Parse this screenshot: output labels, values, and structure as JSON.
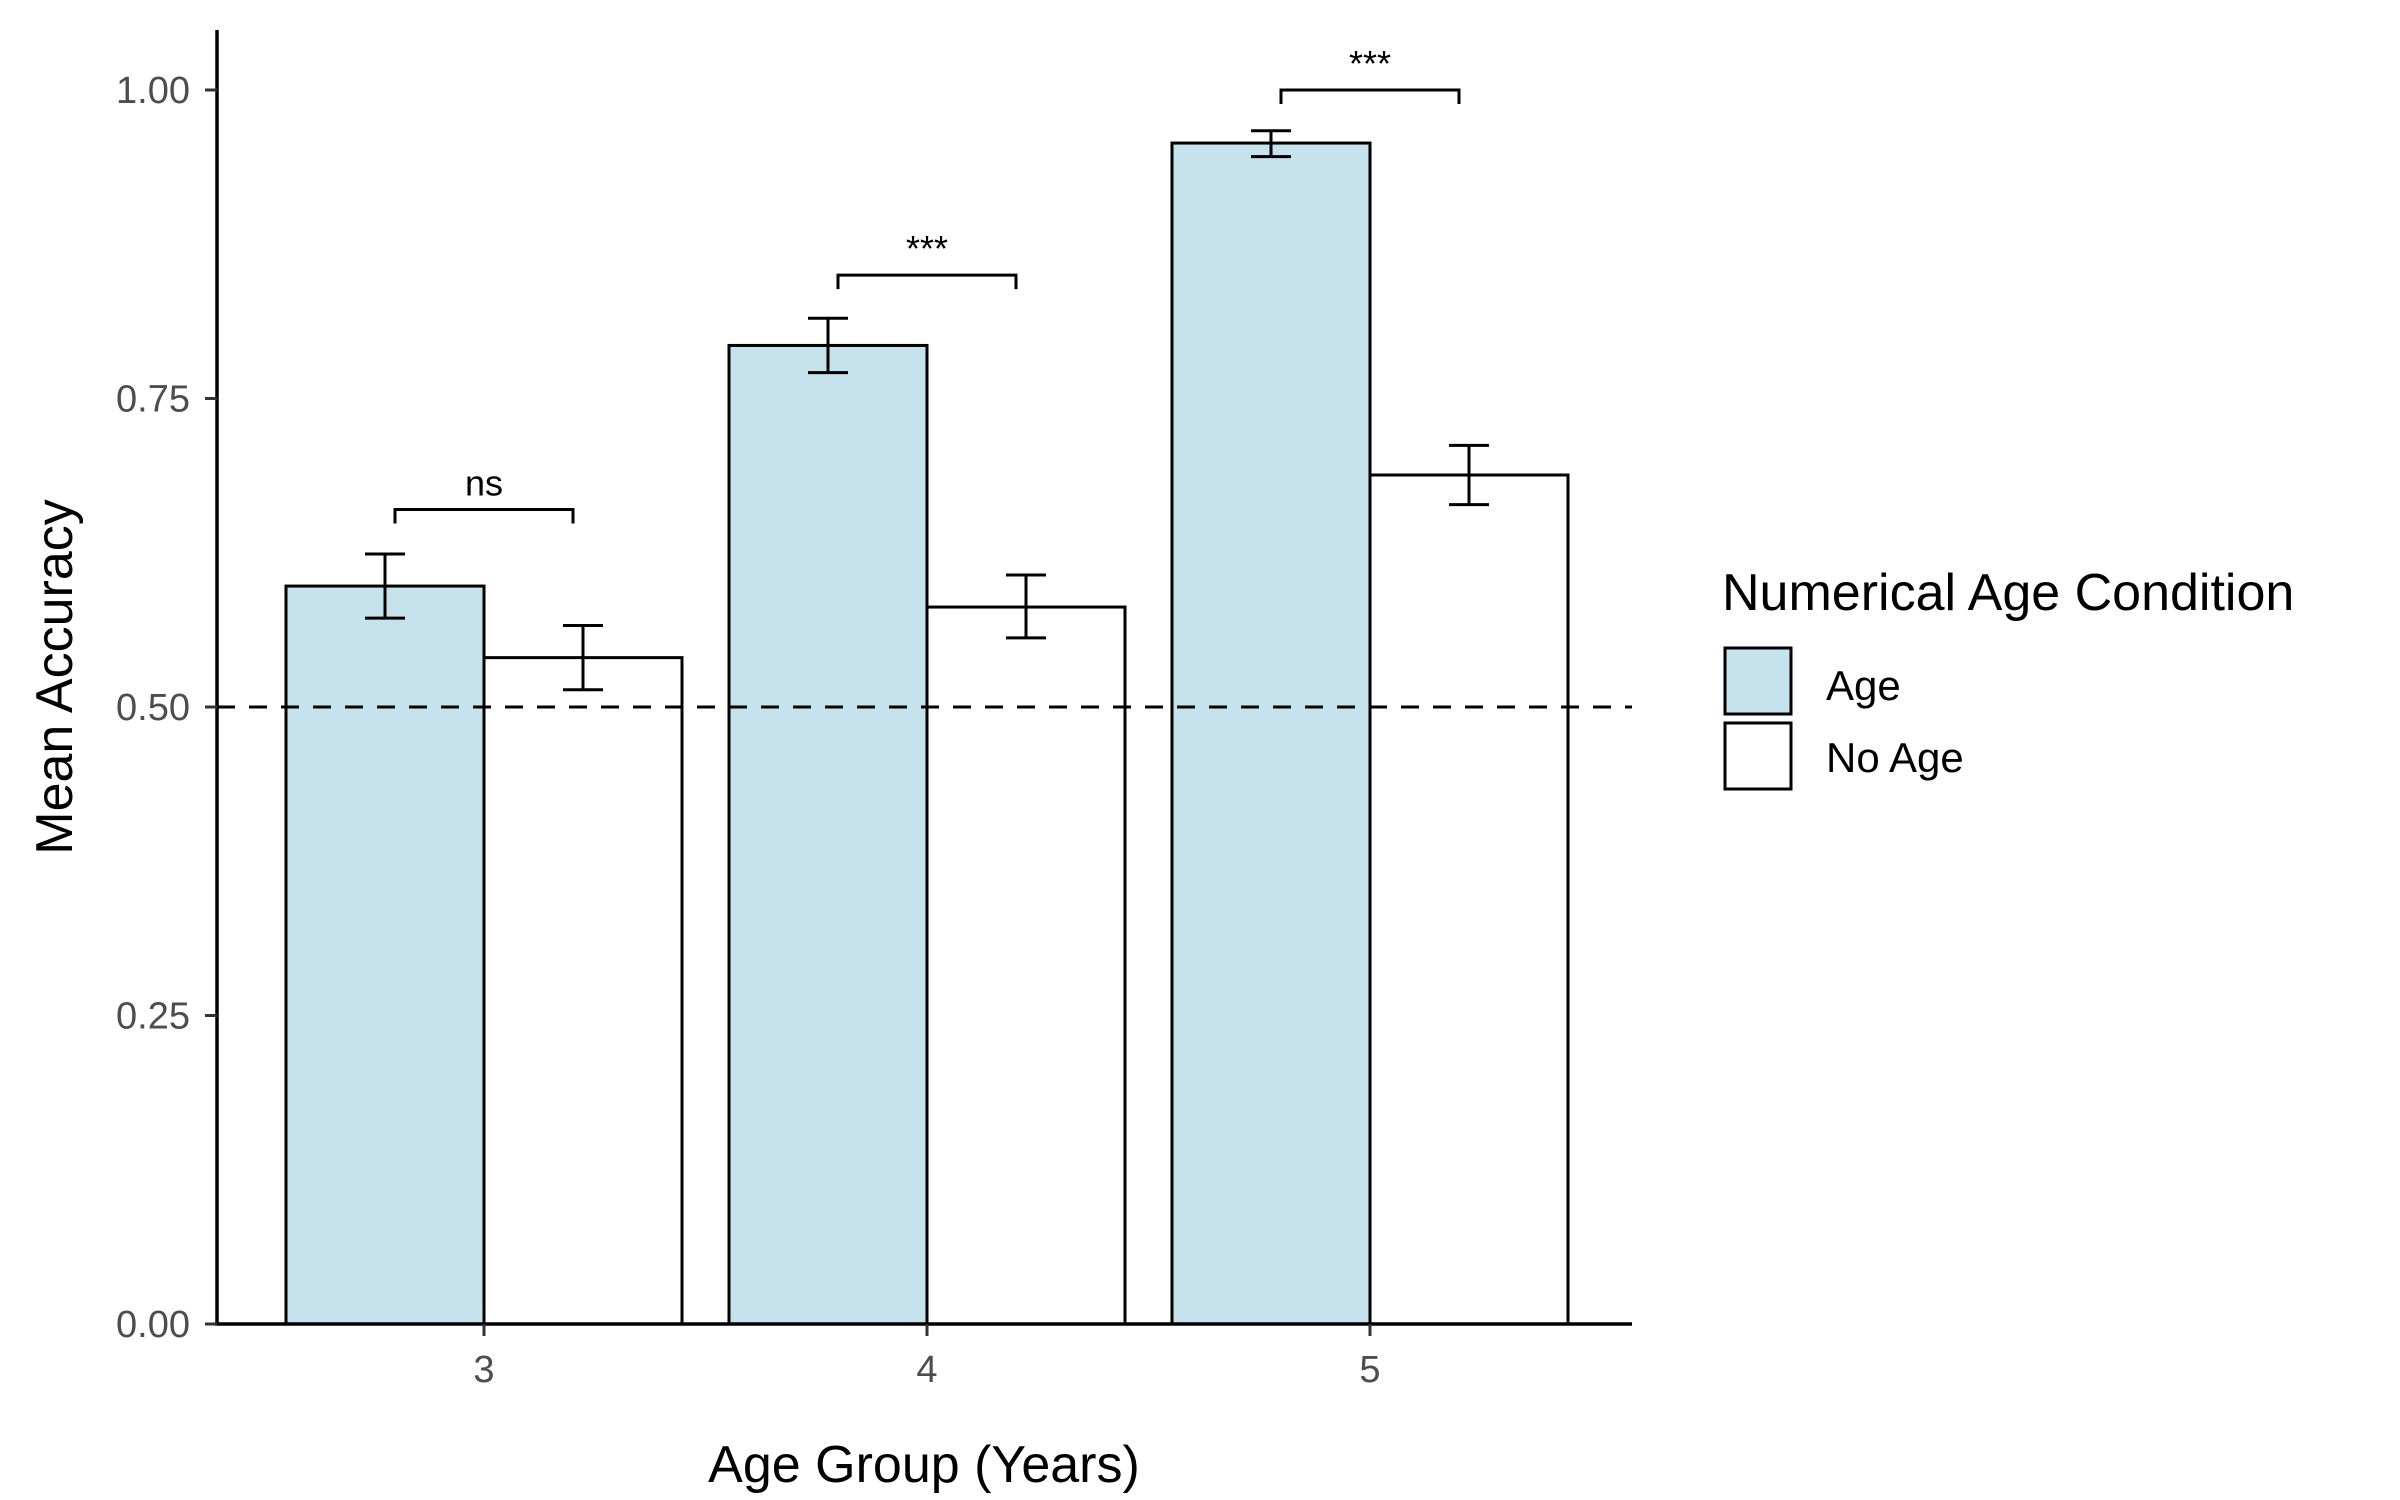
{
  "chart_data": {
    "type": "bar",
    "xlabel": "Age Group (Years)",
    "ylabel": "Mean Accuracy",
    "categories": [
      "3",
      "4",
      "5"
    ],
    "ylim": [
      0,
      1.05
    ],
    "yticks": [
      0.0,
      0.25,
      0.5,
      0.75,
      1.0
    ],
    "ytick_labels": [
      "0.00",
      "0.25",
      "0.50",
      "0.75",
      "1.00"
    ],
    "reference_line": {
      "y": 0.5,
      "style": "dashed"
    },
    "grid": false,
    "legend": {
      "title": "Numerical Age Condition",
      "placement": "right"
    },
    "series": [
      {
        "name": "Age",
        "color": "#c6e3ed",
        "values": [
          0.598,
          0.793,
          0.957
        ],
        "error_low": [
          0.572,
          0.771,
          0.946
        ],
        "error_high": [
          0.624,
          0.815,
          0.967
        ]
      },
      {
        "name": "No Age",
        "color": "#ffffff",
        "values": [
          0.54,
          0.581,
          0.688
        ],
        "error_low": [
          0.514,
          0.556,
          0.664
        ],
        "error_high": [
          0.566,
          0.607,
          0.712
        ]
      }
    ],
    "significance": [
      {
        "category": "3",
        "label": "ns",
        "y": 0.66
      },
      {
        "category": "4",
        "label": "***",
        "y": 0.85
      },
      {
        "category": "5",
        "label": "***",
        "y": 1.0
      }
    ]
  }
}
